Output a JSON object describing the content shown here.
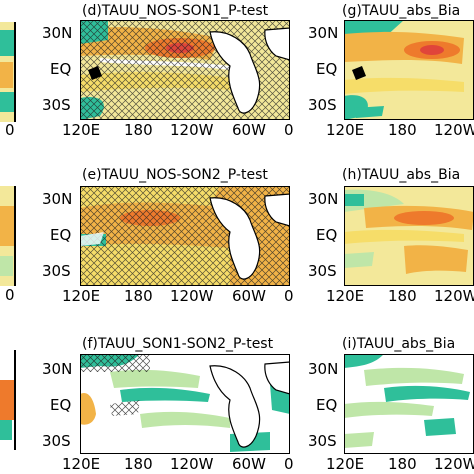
{
  "panels": {
    "d": {
      "title": "(d)TAUU_NOS-SON1_P-test",
      "lat_labels": [
        "30N",
        "EQ",
        "30S"
      ],
      "lon_labels": [
        "120E",
        "180",
        "120W",
        "60W",
        "0"
      ]
    },
    "e": {
      "title": "(e)TAUU_NOS-SON2_P-test",
      "lat_labels": [
        "30N",
        "EQ",
        "30S"
      ],
      "lon_labels": [
        "120E",
        "180",
        "120W",
        "60W",
        "0"
      ]
    },
    "f": {
      "title": "(f)TAUU_SON1-SON2_P-test",
      "lat_labels": [
        "30N",
        "EQ",
        "30S"
      ],
      "lon_labels": [
        "120E",
        "180",
        "120W",
        "60W",
        "0"
      ]
    },
    "g": {
      "title": "(g)TAUU_abs_Bia",
      "lat_labels": [
        "30N",
        "EQ",
        "30S"
      ],
      "lon_labels": [
        "120E",
        "180",
        "120W"
      ]
    },
    "h": {
      "title": "(h)TAUU_abs_Bia",
      "lat_labels": [
        "30N",
        "EQ",
        "30S"
      ],
      "lon_labels": [
        "120E",
        "180",
        "120W"
      ]
    },
    "i": {
      "title": "(i)TAUU_abs_Bia",
      "lat_labels": [
        "30N",
        "EQ",
        "30S"
      ],
      "lon_labels": [
        "120E",
        "180",
        "120W"
      ]
    },
    "left_cut": {
      "lon_label": "0"
    }
  },
  "colors": {
    "orange": "#f2b347",
    "deep_orange": "#ee7a2c",
    "red": "#e0453a",
    "yellow": "#f6dd69",
    "pale_yellow": "#f3e89a",
    "teal": "#2fbf9a",
    "light_green": "#bfe6a8",
    "white": "#ffffff"
  }
}
